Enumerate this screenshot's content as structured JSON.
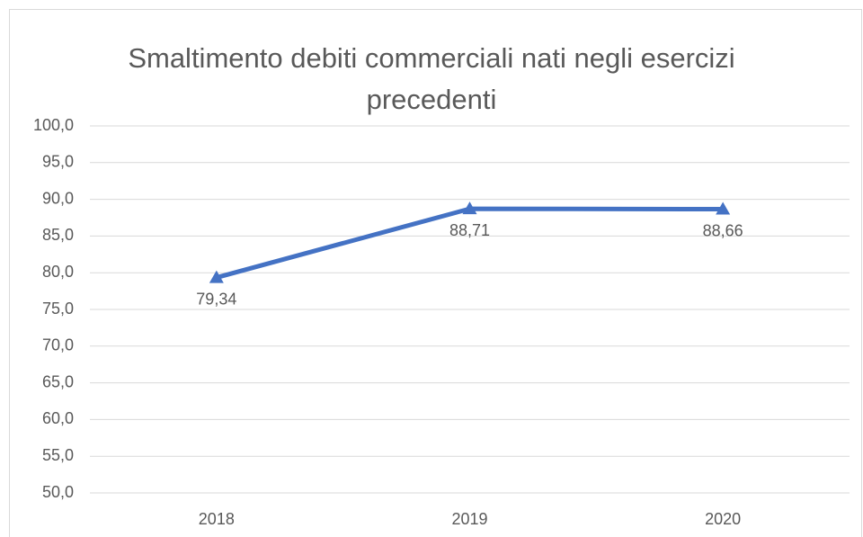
{
  "chart_data": {
    "type": "line",
    "title": "Smaltimento debiti commerciali nati negli esercizi precedenti",
    "categories": [
      "2018",
      "2019",
      "2020"
    ],
    "series": [
      {
        "name": "Smaltimento debiti commerciali nati negli esercizi precedenti",
        "color": "#4472c4",
        "values": [
          79.34,
          88.71,
          88.66
        ],
        "value_labels": [
          "79,34",
          "88,71",
          "88,66"
        ]
      }
    ],
    "ylim": [
      50,
      100
    ],
    "yticks": [
      {
        "value": 50,
        "label": "50,0"
      },
      {
        "value": 55,
        "label": "55,0"
      },
      {
        "value": 60,
        "label": "60,0"
      },
      {
        "value": 65,
        "label": "65,0"
      },
      {
        "value": 70,
        "label": "70,0"
      },
      {
        "value": 75,
        "label": "75,0"
      },
      {
        "value": 80,
        "label": "80,0"
      },
      {
        "value": 85,
        "label": "85,0"
      },
      {
        "value": 90,
        "label": "90,0"
      },
      {
        "value": 95,
        "label": "95,0"
      },
      {
        "value": 100,
        "label": "100,0"
      }
    ],
    "grid": true,
    "marker": "triangle"
  }
}
